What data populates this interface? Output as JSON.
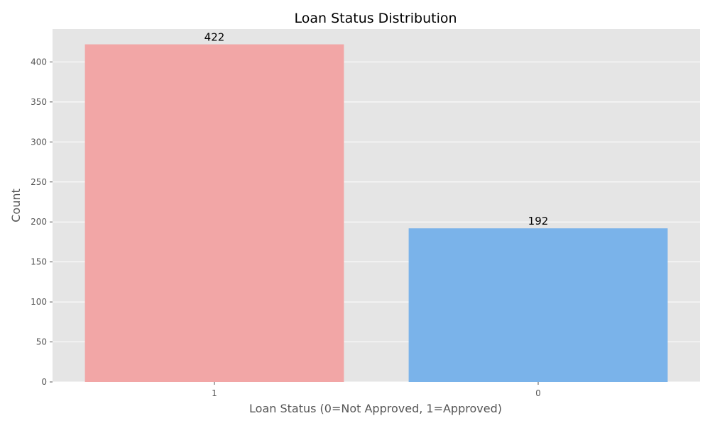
{
  "chart_data": {
    "type": "bar",
    "title": "Loan Status Distribution",
    "xlabel": "Loan Status (0=Not Approved, 1=Approved)",
    "ylabel": "Count",
    "categories": [
      "1",
      "0"
    ],
    "values": [
      422,
      192
    ],
    "data_labels": [
      "422",
      "192"
    ],
    "bar_colors": [
      "#f2a6a6",
      "#7ab3ea"
    ],
    "ylim": [
      0,
      441.1
    ],
    "yticks": [
      0,
      50,
      100,
      150,
      200,
      250,
      300,
      350,
      400
    ],
    "ytick_labels": [
      "0",
      "50",
      "100",
      "150",
      "200",
      "250",
      "300",
      "350",
      "400"
    ],
    "grid": true,
    "legend": "none",
    "background_color": "#e5e5e5",
    "grid_color": "#ffffff"
  }
}
